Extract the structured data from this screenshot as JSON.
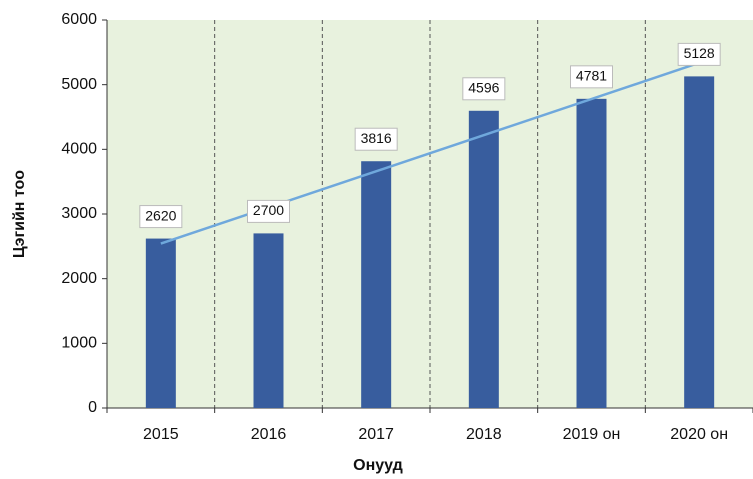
{
  "chart_data": {
    "type": "bar",
    "x_label": "Онууд",
    "y_label": "Цэгийн тоо",
    "categories": [
      "2015",
      "2016",
      "2017",
      "2018",
      "2019 он",
      "2020 он"
    ],
    "values": [
      2620,
      2700,
      3816,
      4596,
      4781,
      5128
    ],
    "color": "#385d9e",
    "trendline": true,
    "trendline_color": "#6fa8dc",
    "ylim": [
      0,
      6000
    ],
    "yticks": [
      0,
      1000,
      2000,
      3000,
      4000,
      5000,
      6000
    ],
    "grid": true,
    "plot_background": "#e8f2de"
  }
}
